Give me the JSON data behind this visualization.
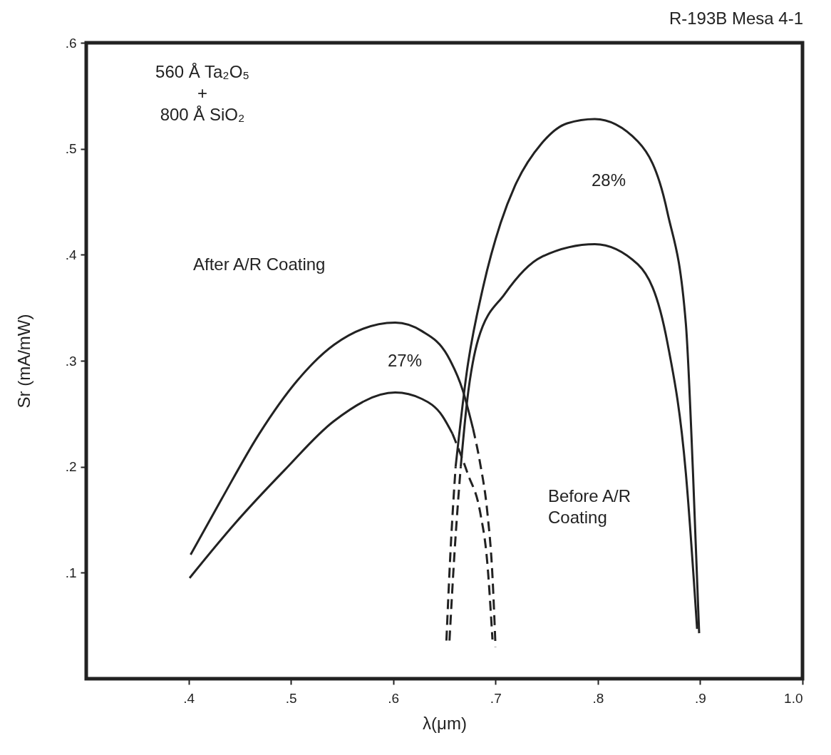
{
  "chart_data": {
    "type": "line",
    "title": "R-193B  Mesa 4-1",
    "xlabel": "λ(μm)",
    "ylabel": "Sr (mA/mW)",
    "xlim": [
      0.3,
      1.0
    ],
    "ylim": [
      0,
      0.6
    ],
    "xticks": [
      {
        "value": 0.4,
        "label": ".4"
      },
      {
        "value": 0.5,
        "label": ".5"
      },
      {
        "value": 0.6,
        "label": ".6"
      },
      {
        "value": 0.7,
        "label": ".7"
      },
      {
        "value": 0.8,
        "label": ".8"
      },
      {
        "value": 0.9,
        "label": ".9"
      },
      {
        "value": 1.0,
        "label": "1.0"
      }
    ],
    "yticks": [
      {
        "value": 0.1,
        "label": ".1"
      },
      {
        "value": 0.2,
        "label": ".2"
      },
      {
        "value": 0.3,
        "label": ".3"
      },
      {
        "value": 0.4,
        "label": ".4"
      },
      {
        "value": 0.5,
        "label": ".5"
      },
      {
        "value": 0.6,
        "label": ".6"
      }
    ],
    "grid": false,
    "marker": "none",
    "series": [
      {
        "type": "line",
        "color": "#222222",
        "line_style": "solid",
        "x": [
          0.402,
          0.432,
          0.469,
          0.506,
          0.542,
          0.602,
          0.628,
          0.653,
          0.668,
          0.678
        ],
        "values": [
          0.117,
          0.169,
          0.231,
          0.281,
          0.315,
          0.336,
          0.328,
          0.305,
          0.272,
          0.236
        ]
      },
      {
        "type": "line",
        "color": "#222222",
        "line_style": "dashed",
        "x": [
          0.678,
          0.685,
          0.692,
          0.697,
          0.7
        ],
        "values": [
          0.236,
          0.203,
          0.157,
          0.097,
          0.03
        ]
      },
      {
        "type": "line",
        "color": "#222222",
        "line_style": "solid",
        "x": [
          0.401,
          0.444,
          0.494,
          0.542,
          0.602,
          0.628,
          0.648,
          0.658
        ],
        "values": [
          0.095,
          0.145,
          0.197,
          0.243,
          0.27,
          0.264,
          0.248,
          0.231
        ]
      },
      {
        "type": "line",
        "color": "#222222",
        "line_style": "dashed",
        "x": [
          0.658,
          0.673,
          0.685,
          0.692,
          0.697
        ],
        "values": [
          0.231,
          0.193,
          0.157,
          0.109,
          0.037
        ]
      },
      {
        "type": "line",
        "color": "#222222",
        "line_style": "dashed",
        "x": [
          0.652,
          0.656,
          0.661
        ],
        "values": [
          0.036,
          0.12,
          0.2
        ]
      },
      {
        "type": "line",
        "color": "#222222",
        "line_style": "solid",
        "x": [
          0.661,
          0.672,
          0.688,
          0.705,
          0.719,
          0.745,
          0.77,
          0.797,
          0.839,
          0.868,
          0.886,
          0.893,
          0.899
        ],
        "values": [
          0.2,
          0.29,
          0.37,
          0.43,
          0.465,
          0.505,
          0.524,
          0.528,
          0.507,
          0.44,
          0.335,
          0.194,
          0.043
        ]
      },
      {
        "type": "line",
        "color": "#222222",
        "line_style": "dashed",
        "x": [
          0.655,
          0.66,
          0.666
        ],
        "values": [
          0.036,
          0.12,
          0.2
        ]
      },
      {
        "type": "line",
        "color": "#222222",
        "line_style": "solid",
        "x": [
          0.666,
          0.672,
          0.683,
          0.709,
          0.745,
          0.797,
          0.839,
          0.868,
          0.886,
          0.897
        ],
        "values": [
          0.2,
          0.26,
          0.32,
          0.363,
          0.398,
          0.41,
          0.391,
          0.317,
          0.194,
          0.047
        ]
      }
    ],
    "annotations": [
      "560 Å Ta₂O₅\n+\n800 Å SiO₂",
      "After A/R Coating",
      "Before A/R\nCoating",
      "27%",
      "28%"
    ]
  }
}
